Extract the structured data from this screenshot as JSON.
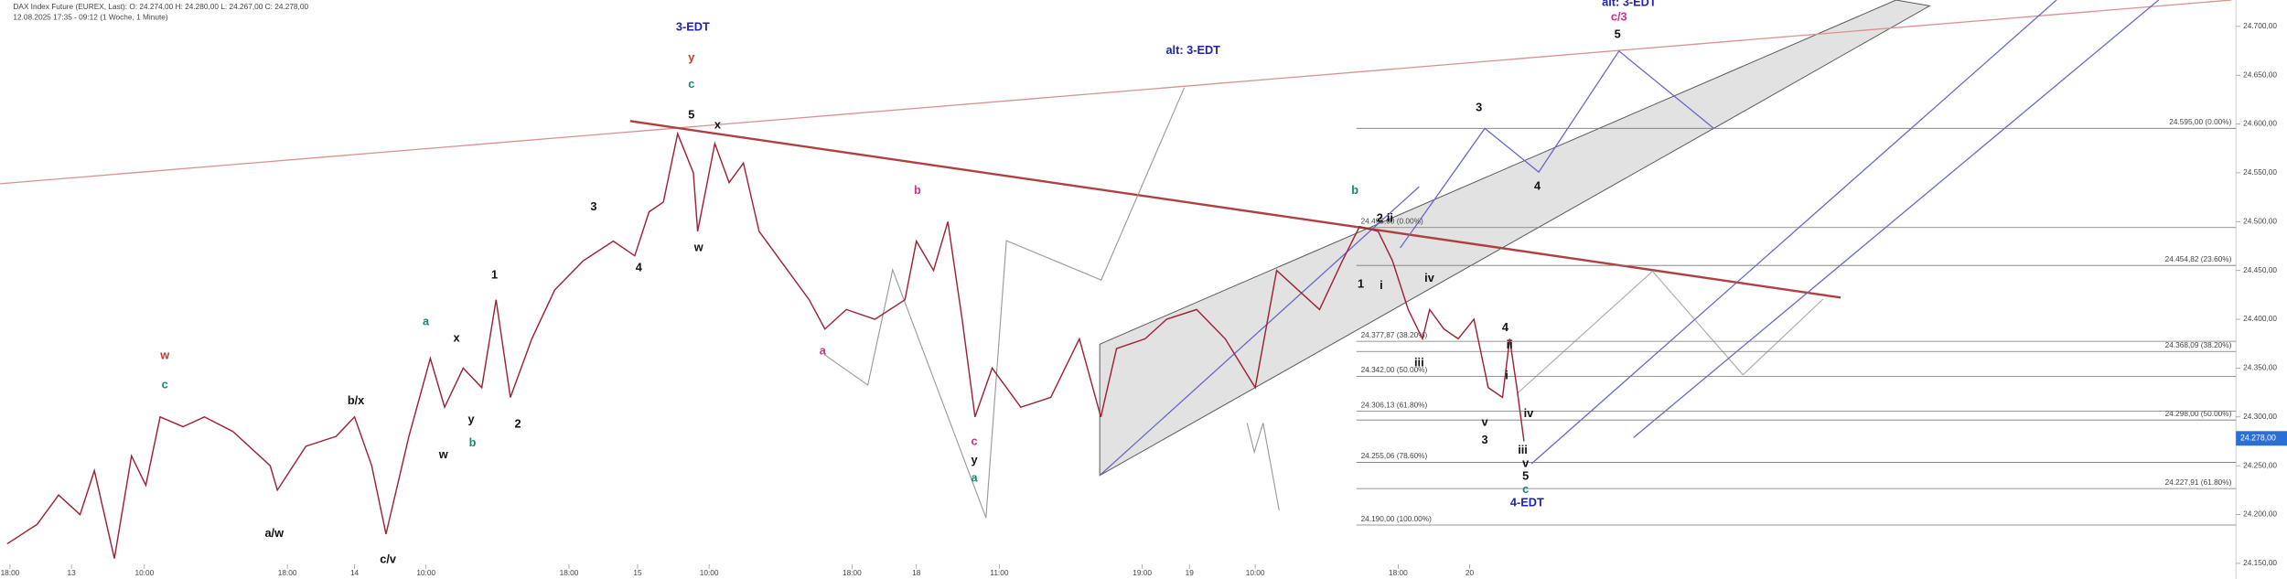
{
  "header": {
    "instrument": "DAX Index Future (EUREX, Last): O: 24.274,00  H: 24.280,00  L: 24.267,00  C: 24.278,00",
    "period": "12.08.2025 17:35 - 09:12 (1 Woche, 1 Minute)"
  },
  "chart_data": {
    "type": "line",
    "x": [
      0.05,
      0.26,
      0.41,
      0.56,
      0.66,
      0.8,
      0.92,
      1.02,
      1.12,
      1.28,
      1.43,
      1.63,
      1.89,
      1.94,
      2.14,
      2.35,
      2.48,
      2.6,
      2.7,
      2.86,
      3.01,
      3.11,
      3.24,
      3.37,
      3.47,
      3.57,
      3.72,
      3.88,
      4.08,
      4.29,
      4.44,
      4.54,
      4.64,
      4.74,
      4.85,
      4.88,
      5,
      5.1,
      5.2,
      5.31,
      5.51,
      5.66,
      5.77,
      5.92,
      6.12,
      6.33,
      6.41,
      6.53,
      6.63,
      6.73,
      6.82,
      6.94,
      7.14,
      7.35,
      7.55,
      7.7,
      7.81,
      8.01,
      8.16,
      8.37,
      8.57,
      8.78,
      8.93,
      9.08,
      9.23,
      9.39,
      9.51,
      9.64,
      9.74,
      9.85,
      9.95,
      10,
      10.1,
      10.2,
      10.31,
      10.41,
      10.51,
      10.56,
      10.61,
      10.66
    ],
    "series": [
      {
        "color": "#9b2335",
        "values": [
          24170,
          24190,
          24220,
          24200,
          24245,
          24155,
          24260,
          24230,
          24300,
          24290,
          24300,
          24285,
          24250,
          24225,
          24270,
          24280,
          24300,
          24250,
          24180,
          24280,
          24360,
          24310,
          24350,
          24330,
          24420,
          24320,
          24380,
          24430,
          24460,
          24480,
          24465,
          24510,
          24520,
          24590,
          24550,
          24490,
          24580,
          24540,
          24560,
          24490,
          24450,
          24420,
          24390,
          24410,
          24400,
          24420,
          24480,
          24450,
          24500,
          24400,
          24300,
          24350,
          24310,
          24320,
          24380,
          24300,
          24370,
          24380,
          24400,
          24410,
          24380,
          24330,
          24450,
          24430,
          24410,
          24460,
          24495,
          24490,
          24460,
          24410,
          24380,
          24410,
          24390,
          24380,
          24400,
          24330,
          24320,
          24380,
          24330,
          24275
        ]
      }
    ],
    "xlim": [
      0,
      15.64
    ],
    "xticks": [
      {
        "value": 0.07,
        "label": "18:00"
      },
      {
        "value": 0.5,
        "label": "13"
      },
      {
        "value": 1.01,
        "label": "10:00"
      },
      {
        "value": 2.01,
        "label": "18:00"
      },
      {
        "value": 2.48,
        "label": "14"
      },
      {
        "value": 2.98,
        "label": "10:00"
      },
      {
        "value": 3.98,
        "label": "18:00"
      },
      {
        "value": 4.46,
        "label": "15"
      },
      {
        "value": 4.96,
        "label": "10:00"
      },
      {
        "value": 5.96,
        "label": "18:00"
      },
      {
        "value": 6.41,
        "label": "18"
      },
      {
        "value": 6.99,
        "label": "11:00"
      },
      {
        "value": 7.99,
        "label": "19:00"
      },
      {
        "value": 8.32,
        "label": "19"
      },
      {
        "value": 8.78,
        "label": "10:00"
      },
      {
        "value": 9.78,
        "label": "18:00"
      },
      {
        "value": 10.28,
        "label": "20"
      }
    ],
    "ylim": [
      24134,
      24727
    ],
    "yticks": [
      {
        "value": 24700,
        "label": "24.700,00"
      },
      {
        "value": 24650,
        "label": "24.650,00"
      },
      {
        "value": 24600,
        "label": "24.600,00"
      },
      {
        "value": 24550,
        "label": "24.550,00"
      },
      {
        "value": 24500,
        "label": "24.500,00"
      },
      {
        "value": 24450,
        "label": "24.450,00"
      },
      {
        "value": 24400,
        "label": "24.400,00"
      },
      {
        "value": 24350,
        "label": "24.350,00"
      },
      {
        "value": 24300,
        "label": "24.300,00"
      },
      {
        "value": 24250,
        "label": "24.250,00"
      },
      {
        "value": 24200,
        "label": "24.200,00"
      },
      {
        "value": 24150,
        "label": "24.150,00"
      }
    ],
    "last_price": {
      "value": 24278,
      "label": "24.278,00"
    }
  },
  "fib_labels_right": [
    "24.595,00 (0.00%)",
    "24.454,82 (23.60%)",
    "24.368,09 (38.20%)",
    "24.298,00 (50.00%)",
    "24.227,91 (61.80%)"
  ],
  "fib_labels_mid": [
    "24.495,00 (0.00%)",
    "24.377,87 (38.20%)",
    "24.342,00 (50.00%)",
    "24.306,13 (61.80%)",
    "24.255,06 (78.60%)",
    "24.190,00 (100.00%)"
  ],
  "annotations": [
    "3-EDT",
    "y",
    "c",
    "5",
    "x",
    "w",
    "3",
    "4",
    "1",
    "2",
    "x",
    "a",
    "y",
    "b",
    "w",
    "b/x",
    "c/v",
    "a/w",
    "w",
    "c",
    "b",
    "a",
    "c",
    "y",
    "a",
    "alt: 3-EDT",
    "b",
    "1",
    "i",
    "2",
    "ii",
    "iv",
    "iii",
    "3",
    "4",
    "4",
    "ii",
    "i",
    "v",
    "3",
    "iv",
    "iii",
    "v",
    "5",
    "c",
    "4-EDT",
    "alt: 3-EDT",
    "c/3",
    "5"
  ]
}
